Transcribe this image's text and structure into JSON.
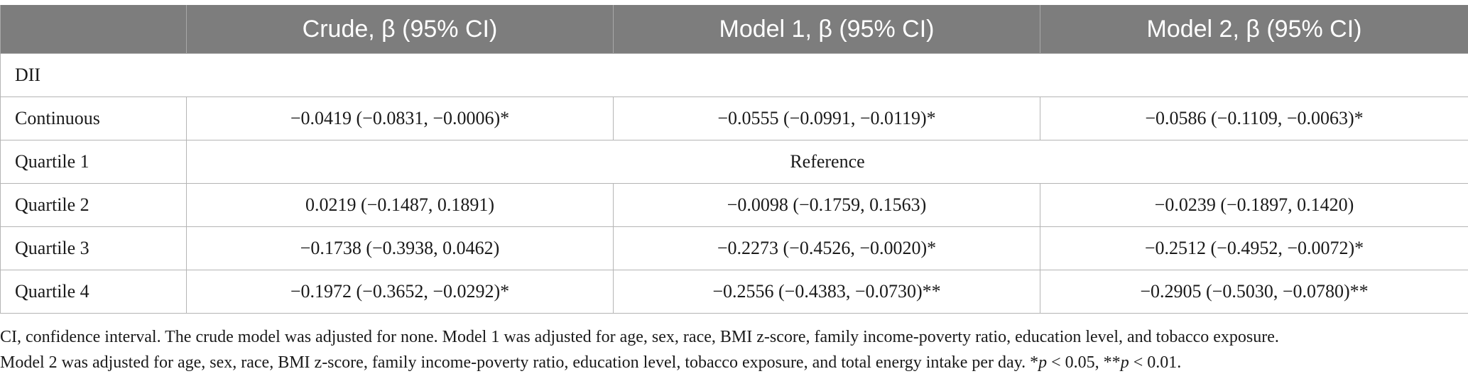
{
  "table": {
    "headers": [
      "",
      "Crude, β (95% CI)",
      "Model 1, β (95% CI)",
      "Model 2, β (95% CI)"
    ],
    "section_label": "DII",
    "rows": [
      {
        "label": "Continuous",
        "crude": "−0.0419 (−0.0831, −0.0006)*",
        "model1": "−0.0555 (−0.0991, −0.0119)*",
        "model2": "−0.0586 (−0.1109, −0.0063)*"
      },
      {
        "label": "Quartile 1",
        "reference": "Reference"
      },
      {
        "label": "Quartile 2",
        "crude": "0.0219 (−0.1487, 0.1891)",
        "model1": "−0.0098 (−0.1759, 0.1563)",
        "model2": "−0.0239 (−0.1897, 0.1420)"
      },
      {
        "label": "Quartile 3",
        "crude": "−0.1738 (−0.3938, 0.0462)",
        "model1": "−0.2273 (−0.4526, −0.0020)*",
        "model2": "−0.2512 (−0.4952, −0.0072)*"
      },
      {
        "label": "Quartile 4",
        "crude": "−0.1972 (−0.3652, −0.0292)*",
        "model1": "−0.2556 (−0.4383, −0.0730)**",
        "model2": "−0.2905 (−0.5030, −0.0780)**"
      }
    ]
  },
  "footnote": {
    "line1": "CI, confidence interval. The crude model was adjusted for none. Model 1 was adjusted for age, sex, race, BMI z-score, family income-poverty ratio, education level, and tobacco exposure.",
    "line2_prefix": "Model 2 was adjusted for age, sex, race, BMI z-score, family income-poverty ratio, education level, tobacco exposure, and total energy intake per day. *",
    "p1_symbol": "p",
    "p1_text": " < 0.05, **",
    "p2_symbol": "p",
    "p2_text": " < 0.01."
  },
  "colors": {
    "header_bg": "#7d7d7d",
    "header_text": "#ffffff",
    "border": "#b5b5b5"
  }
}
